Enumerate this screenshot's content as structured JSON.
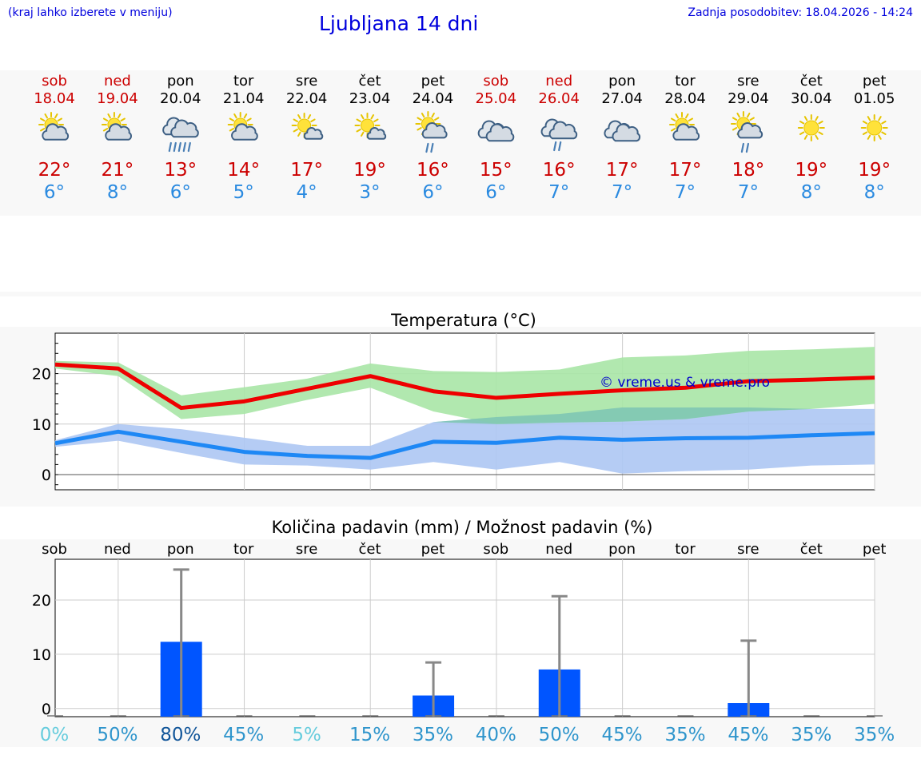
{
  "header": {
    "left_note": "(kraj lahko izberete v meniju)",
    "title": "Ljubljana 14 dni",
    "updated": "Zadnja posodobitev: 18.04.2026 - 14:24"
  },
  "colors": {
    "weekend": "#cc0000",
    "weekday": "#000000",
    "temp_max": "#cc0000",
    "temp_min": "#2a8ae0",
    "max_line": "#ee0000",
    "min_line": "#1e88f5",
    "max_band": "#a8e5a6",
    "min_band": "#adc6f3",
    "overlap_band": "#7fc6b4",
    "precip_bar": "#0055ff",
    "precip_whisker": "#888888",
    "watermark": "#0000cc"
  },
  "days": [
    {
      "name": "sob",
      "date": "18.04",
      "weekend": true,
      "icon": "sun-cloud-icon",
      "tmax": "22°",
      "tmin": "6°"
    },
    {
      "name": "ned",
      "date": "19.04",
      "weekend": true,
      "icon": "sun-cloud-icon",
      "tmax": "21°",
      "tmin": "8°"
    },
    {
      "name": "pon",
      "date": "20.04",
      "weekend": false,
      "icon": "heavy-rain-cloud-icon",
      "tmax": "13°",
      "tmin": "6°"
    },
    {
      "name": "tor",
      "date": "21.04",
      "weekend": false,
      "icon": "sun-cloud-icon",
      "tmax": "14°",
      "tmin": "5°"
    },
    {
      "name": "sre",
      "date": "22.04",
      "weekend": false,
      "icon": "sun-small-cloud-icon",
      "tmax": "17°",
      "tmin": "4°"
    },
    {
      "name": "čet",
      "date": "23.04",
      "weekend": false,
      "icon": "sun-small-cloud-icon",
      "tmax": "19°",
      "tmin": "3°"
    },
    {
      "name": "pet",
      "date": "24.04",
      "weekend": false,
      "icon": "sun-rain-cloud-icon",
      "tmax": "16°",
      "tmin": "6°"
    },
    {
      "name": "sob",
      "date": "25.04",
      "weekend": true,
      "icon": "cloudy-icon",
      "tmax": "15°",
      "tmin": "6°"
    },
    {
      "name": "ned",
      "date": "26.04",
      "weekend": true,
      "icon": "rain-cloud-icon",
      "tmax": "16°",
      "tmin": "7°"
    },
    {
      "name": "pon",
      "date": "27.04",
      "weekend": false,
      "icon": "cloudy-icon",
      "tmax": "17°",
      "tmin": "7°"
    },
    {
      "name": "tor",
      "date": "28.04",
      "weekend": false,
      "icon": "sun-cloud-icon",
      "tmax": "17°",
      "tmin": "7°"
    },
    {
      "name": "sre",
      "date": "29.04",
      "weekend": false,
      "icon": "sun-rain-cloud-icon",
      "tmax": "18°",
      "tmin": "7°"
    },
    {
      "name": "čet",
      "date": "30.04",
      "weekend": false,
      "icon": "sun-icon",
      "tmax": "19°",
      "tmin": "8°"
    },
    {
      "name": "pet",
      "date": "01.05",
      "weekend": false,
      "icon": "sun-icon",
      "tmax": "19°",
      "tmin": "8°"
    }
  ],
  "chart_data": [
    {
      "type": "line",
      "title": "Temperatura (°C)",
      "x": [
        "18.04",
        "19.04",
        "20.04",
        "21.04",
        "22.04",
        "23.04",
        "24.04",
        "25.04",
        "26.04",
        "27.04",
        "28.04",
        "29.04",
        "30.04",
        "01.05"
      ],
      "ylim": [
        -3,
        28
      ],
      "yticks": [
        0,
        10,
        20
      ],
      "grid": true,
      "watermark": "© vreme.us & vreme.pro",
      "series": [
        {
          "name": "max",
          "values": [
            21.8,
            21.0,
            13.2,
            14.5,
            17.0,
            19.5,
            16.5,
            15.2,
            16.0,
            16.7,
            17.2,
            18.5,
            18.8,
            19.2
          ]
        },
        {
          "name": "min",
          "values": [
            6.2,
            8.5,
            6.5,
            4.5,
            3.7,
            3.3,
            6.5,
            6.3,
            7.3,
            6.9,
            7.2,
            7.3,
            7.8,
            8.2
          ]
        },
        {
          "name": "max_range_low",
          "values": [
            21.0,
            19.5,
            11.0,
            12.0,
            14.8,
            17.2,
            12.5,
            10.0,
            10.3,
            10.5,
            11.0,
            12.5,
            13.0,
            14.0
          ]
        },
        {
          "name": "max_range_high",
          "values": [
            22.5,
            22.2,
            15.7,
            17.3,
            19.0,
            22.0,
            20.5,
            20.3,
            20.8,
            23.2,
            23.6,
            24.5,
            24.8,
            25.3
          ]
        },
        {
          "name": "min_range_low",
          "values": [
            5.5,
            6.7,
            4.3,
            2.0,
            1.8,
            1.0,
            2.5,
            1.0,
            2.5,
            0.2,
            0.7,
            1.0,
            1.8,
            2.0
          ]
        },
        {
          "name": "min_range_high",
          "values": [
            6.8,
            10.0,
            9.0,
            7.3,
            5.7,
            5.7,
            10.4,
            11.4,
            12.0,
            13.3,
            13.3,
            13.3,
            13.0,
            13.0
          ]
        }
      ]
    },
    {
      "type": "bar",
      "title": "Količina padavin (mm) / Možnost padavin (%)",
      "categories": [
        "sob",
        "ned",
        "pon",
        "tor",
        "sre",
        "čet",
        "pet",
        "sob",
        "ned",
        "pon",
        "tor",
        "sre",
        "čet",
        "pet"
      ],
      "ylim": [
        -1.5,
        27.5
      ],
      "yticks": [
        0,
        10,
        20
      ],
      "grid": true,
      "series": [
        {
          "name": "precipitation_mm",
          "values": [
            0,
            0,
            12.3,
            0,
            0,
            0,
            2.4,
            0,
            7.2,
            0,
            0,
            1.0,
            0,
            0
          ]
        },
        {
          "name": "precipitation_max_mm",
          "values": [
            0,
            0,
            25.6,
            0,
            0,
            0,
            8.5,
            0,
            20.7,
            0,
            0,
            12.5,
            0,
            0
          ]
        }
      ],
      "probabilities": [
        "0%",
        "50%",
        "80%",
        "45%",
        "5%",
        "15%",
        "35%",
        "40%",
        "50%",
        "45%",
        "35%",
        "45%",
        "35%",
        "35%"
      ],
      "probability_colors": [
        "#66ccdd",
        "#2f95cc",
        "#115599",
        "#2f95cc",
        "#66ccdd",
        "#2f95cc",
        "#2f95cc",
        "#2f95cc",
        "#2f95cc",
        "#2f95cc",
        "#2f95cc",
        "#2f95cc",
        "#2f95cc",
        "#2f95cc"
      ]
    }
  ]
}
